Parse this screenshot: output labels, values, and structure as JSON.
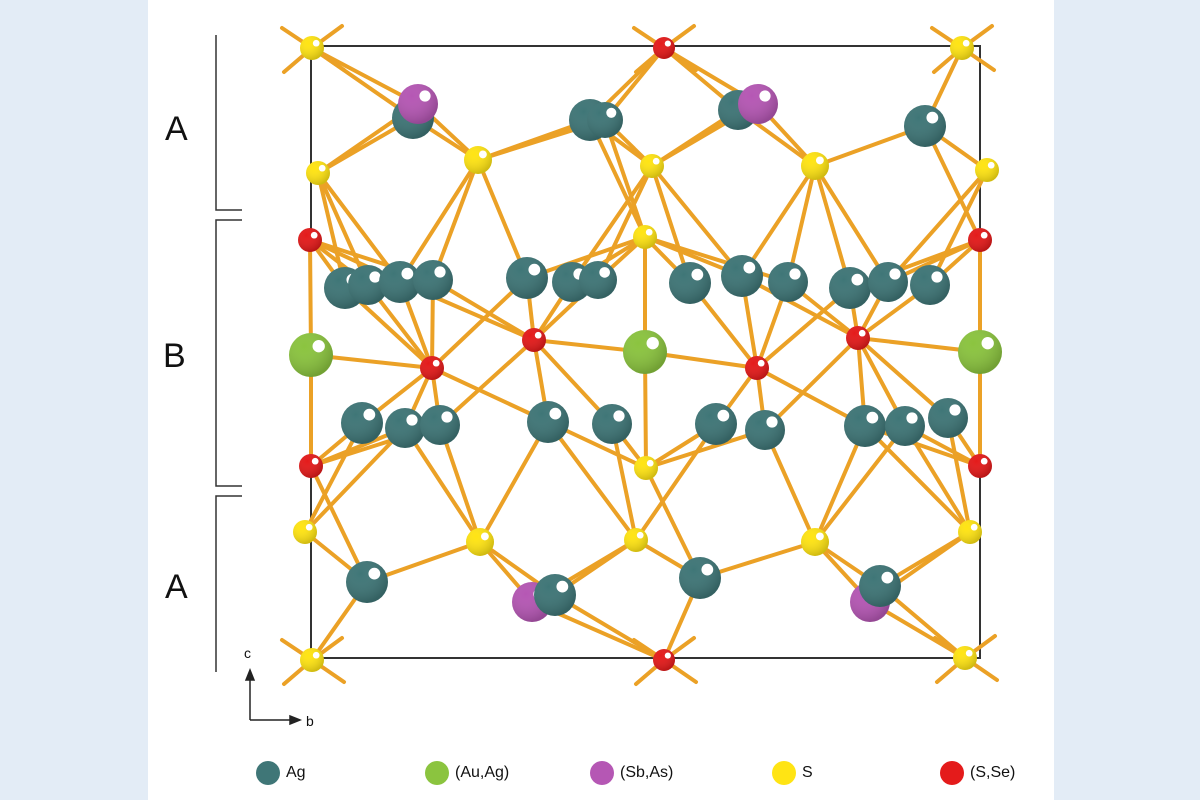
{
  "layer_labels": {
    "top": "A",
    "middle": "B",
    "bottom": "A"
  },
  "axes": {
    "vertical": "c",
    "horizontal": "b"
  },
  "colors": {
    "Ag": "#3f7677",
    "AuAg": "#8bc43f",
    "SbAs": "#b557b4",
    "S": "#ffe414",
    "SSe": "#e41b1b",
    "bond": "#eba126",
    "cell": "#333333",
    "background": "#e3ecf6"
  },
  "legend": [
    {
      "label": "Ag",
      "color_key": "Ag"
    },
    {
      "label": "(Au,Ag)",
      "color_key": "AuAg"
    },
    {
      "label": "(Sb,As)",
      "color_key": "SbAs"
    },
    {
      "label": "S",
      "color_key": "S"
    },
    {
      "label": "(S,Se)",
      "color_key": "SSe"
    }
  ]
}
